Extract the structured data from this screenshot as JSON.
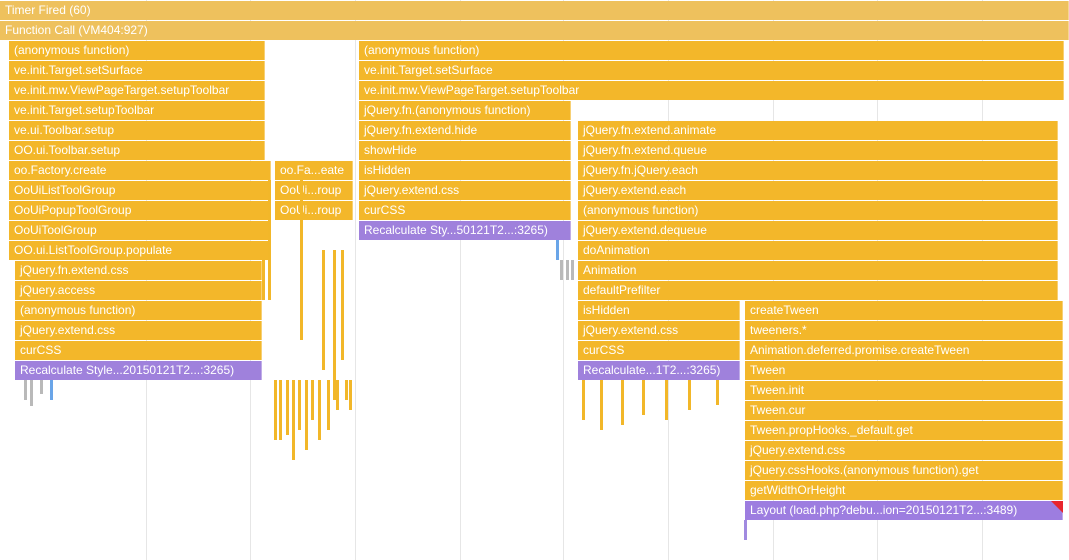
{
  "flame": {
    "root": [
      {
        "id": "timer",
        "label": "Timer Fired (60)"
      },
      {
        "id": "fn-call",
        "label": "Function Call (VM404:927)"
      }
    ],
    "stack_a": [
      "(anonymous function)",
      "ve.init.Target.setSurface",
      "ve.init.mw.ViewPageTarget.setupToolbar",
      "ve.init.Target.setupToolbar",
      "ve.ui.Toolbar.setup",
      "OO.ui.Toolbar.setup",
      "oo.Factory.create",
      "OoUiListToolGroup",
      "OoUiPopupToolGroup",
      "OoUiToolGroup",
      "OO.ui.ListToolGroup.populate",
      "jQuery.fn.extend.css",
      "jQuery.access",
      "(anonymous function)",
      "jQuery.extend.css",
      "curCSS",
      "Recalculate Style...20150121T2...:3265)"
    ],
    "stack_a_side": [
      "oo.Fa...eate",
      "OoUi...roup",
      "OoUi...roup"
    ],
    "stack_b": [
      "(anonymous function)",
      "ve.init.Target.setSurface",
      "ve.init.mw.ViewPageTarget.setupToolbar",
      "jQuery.fn.(anonymous function)",
      "jQuery.fn.extend.hide",
      "showHide",
      "isHidden",
      "jQuery.extend.css",
      "curCSS",
      "Recalculate Sty...50121T2...:3265)"
    ],
    "stack_c": [
      "jQuery.fn.extend.animate",
      "jQuery.fn.extend.queue",
      "jQuery.fn.jQuery.each",
      "jQuery.extend.each",
      "(anonymous function)",
      "jQuery.extend.dequeue",
      "doAnimation",
      "Animation",
      "defaultPrefilter",
      "isHidden",
      "jQuery.extend.css",
      "curCSS",
      "Recalculate...1T2...:3265)"
    ],
    "stack_d": [
      "createTween",
      "tweeners.*",
      "Animation.deferred.promise.createTween",
      "Tween",
      "Tween.init",
      "Tween.cur",
      "Tween.propHooks._default.get",
      "jQuery.extend.css",
      "jQuery.cssHooks.(anonymous function).get",
      "getWidthOrHeight",
      "Layout (load.php?debu...ion=20150121T2...:3489)"
    ],
    "colors": {
      "root": "#eec15d",
      "script": "#f3b72a",
      "recalculate_style": "#9f81dc",
      "layout": "#9d7de0",
      "warning_marker": "#e8252d",
      "gridline": "#e6e6e6"
    }
  }
}
